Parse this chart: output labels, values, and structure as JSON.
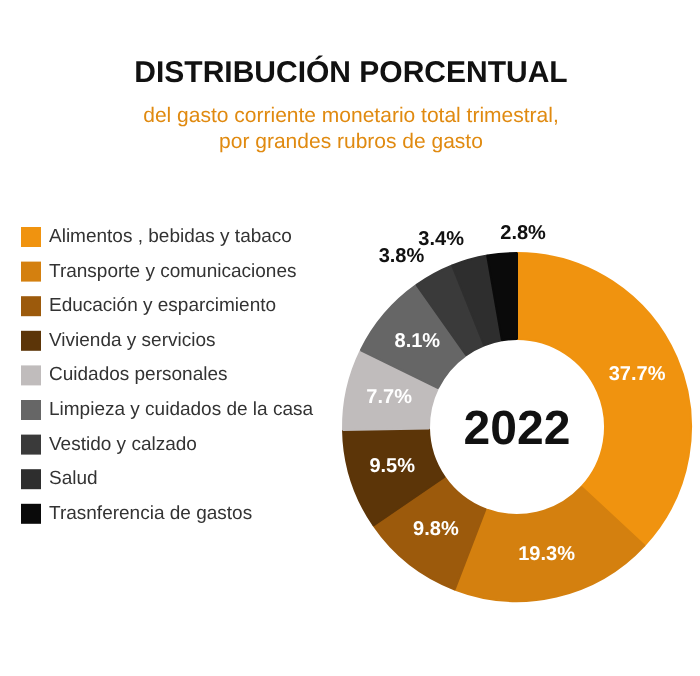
{
  "chart_data": {
    "type": "donut",
    "title": "DISTRIBUCIÓN PORCENTUAL",
    "subtitle": "del gasto corriente monetario total trimestral,\npor grandes rubros de gasto",
    "categories": [
      "Alimentos , bebidas y tabaco",
      "Transporte y comunicaciones",
      "Educación y esparcimiento",
      "Vivienda y servicios",
      "Cuidados personales",
      "Limpieza y cuidados de la casa",
      "Vestido y calzado",
      "Salud",
      "Trasnferencia de gastos"
    ],
    "values": [
      37.7,
      19.3,
      9.8,
      9.5,
      7.7,
      8.1,
      3.8,
      3.4,
      2.8
    ],
    "colors": [
      "#f0930f",
      "#d4800f",
      "#9c5a0c",
      "#5c3508",
      "#c0bcbc",
      "#666666",
      "#3a3a3a",
      "#2e2e2e",
      "#0a0a0a"
    ],
    "value_labels": [
      "37.7%",
      "19.3%",
      "9.8%",
      "9.5%",
      "7.7%",
      "8.1%",
      "3.8%",
      "3.4%",
      "2.8%"
    ],
    "annotations": [
      "2022"
    ],
    "legend": "left"
  }
}
